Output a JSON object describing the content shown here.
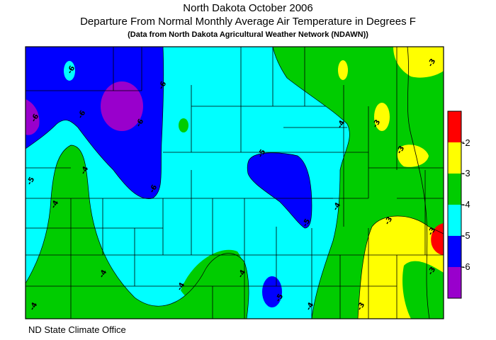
{
  "titles": {
    "line1": "North Dakota October 2006",
    "line2": "Departure From Normal Monthly Average Air Temperature in Degrees F",
    "line3": "(Data from North Dakota Agricultural Weather Network (NDAWN))"
  },
  "legend": {
    "ticks": [
      "-2",
      "-3",
      "-4",
      "-5",
      "-6"
    ],
    "bins": [
      {
        "range": "> -2",
        "color": "#ff0000"
      },
      {
        "range": "-2 to -3",
        "color": "#ffff00"
      },
      {
        "range": "-3 to -4",
        "color": "#00cc00"
      },
      {
        "range": "-4 to -5",
        "color": "#00ffff"
      },
      {
        "range": "-5 to -6",
        "color": "#0000ff"
      },
      {
        "range": "< -6",
        "color": "#9900cc"
      }
    ]
  },
  "contour_labels": [
    "-6",
    "-5",
    "-4",
    "-3"
  ],
  "source": "ND State Climate Office"
}
